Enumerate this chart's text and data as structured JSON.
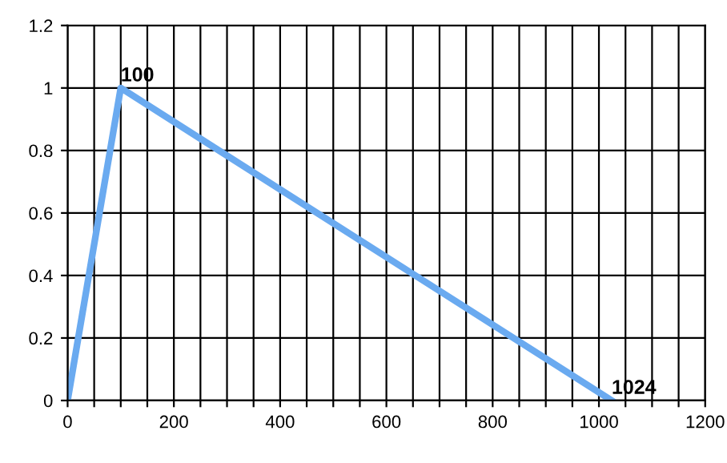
{
  "chart_data": {
    "type": "line",
    "x": [
      0,
      100,
      1024
    ],
    "series": [
      {
        "color": "#6aaaf0",
        "values": [
          0,
          1,
          0
        ]
      }
    ],
    "xlim": [
      0,
      1200
    ],
    "xticks": [
      0,
      {
        "value": 50,
        "label": null
      },
      200,
      {
        "value": 100,
        "label": null
      },
      {
        "value": 150,
        "label": null
      },
      {
        "value": 250,
        "label": null
      },
      {
        "value": 300,
        "label": null
      },
      {
        "value": 350,
        "label": null
      },
      400,
      {
        "value": 450,
        "label": null
      },
      {
        "value": 500,
        "label": null
      },
      {
        "value": 550,
        "label": null
      },
      600,
      {
        "value": 650,
        "label": null
      },
      {
        "value": 700,
        "label": null
      },
      {
        "value": 750,
        "label": null
      },
      800,
      {
        "value": 850,
        "label": null
      },
      {
        "value": 900,
        "label": null
      },
      {
        "value": 950,
        "label": null
      },
      1000,
      {
        "value": 1050,
        "label": null
      },
      {
        "value": 1100,
        "label": null
      },
      {
        "value": 1150,
        "label": null
      },
      1200
    ],
    "ylim": [
      0,
      1.2
    ],
    "yticks": [
      0,
      0.2,
      0.4,
      0.6,
      0.8,
      1,
      1.2
    ],
    "grid": true,
    "marker": "none",
    "line_style": "solid",
    "legend": false,
    "annotations": [
      {
        "text": "100",
        "x": 100,
        "y": 1
      },
      {
        "text": "1024",
        "x": 1024,
        "y": 0
      }
    ]
  }
}
